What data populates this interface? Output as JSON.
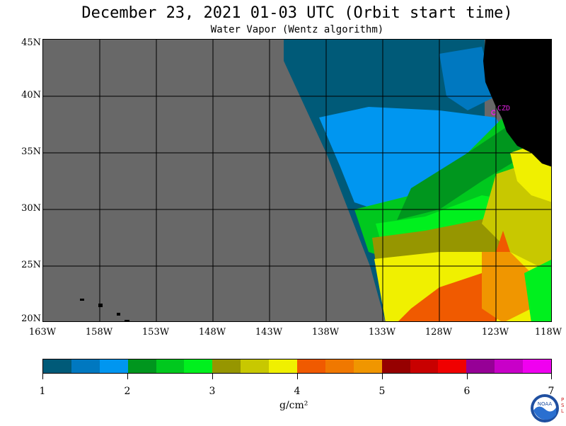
{
  "title": "December 23, 2021  01-03 UTC  (Orbit start time)",
  "subtitle": "Water Vapor (Wentz algorithm)",
  "map": {
    "lat_labels": [
      "45N",
      "40N",
      "35N",
      "30N",
      "25N",
      "20N"
    ],
    "lon_labels": [
      "163W",
      "158W",
      "153W",
      "148W",
      "143W",
      "138W",
      "133W",
      "128W",
      "123W",
      "118W"
    ],
    "station_label": "CZD",
    "colors": {
      "no_data": "#686868",
      "land": "#000000",
      "grid": "#000000",
      "station": "#e020e0"
    }
  },
  "colorbar": {
    "colors": [
      "#005a78",
      "#0078c0",
      "#0096f0",
      "#00961e",
      "#00c81e",
      "#00f01e",
      "#969600",
      "#c8c800",
      "#f0f000",
      "#f05a00",
      "#f07800",
      "#f09600",
      "#960000",
      "#c80000",
      "#f00000",
      "#960096",
      "#c800c8",
      "#f000f0"
    ],
    "ticks": [
      "1",
      "2",
      "3",
      "4",
      "5",
      "6",
      "7"
    ],
    "units": "g/cm²"
  },
  "logo": {
    "name": "noaa-logo",
    "text": "NOAA",
    "side_text": "PSL"
  }
}
